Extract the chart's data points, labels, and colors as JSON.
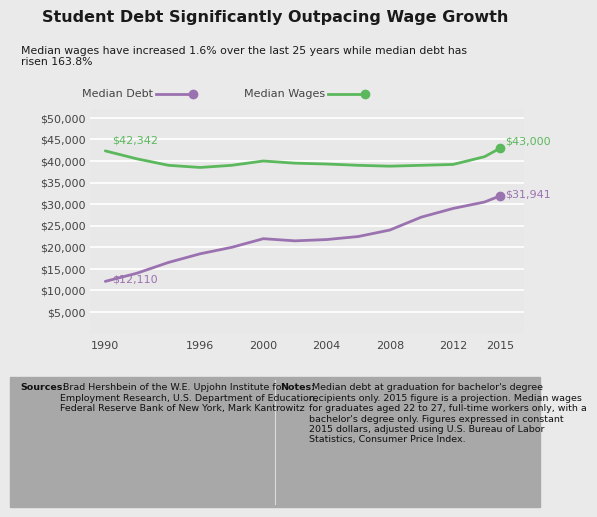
{
  "title": "Student Debt Significantly Outpacing Wage Growth",
  "subtitle": "Median wages have increased 1.6% over the last 25 years while median debt has\nrisen 163.8%",
  "bg_color": "#eaeaea",
  "plot_bg_color": "#e8e8e8",
  "footer_bg_color": "#a8a8a8",
  "debt_color": "#9b72b0",
  "wages_color": "#5cb85c",
  "debt_label": "Median Debt",
  "wages_label": "Median Wages",
  "debt_years": [
    1990,
    1992,
    1994,
    1996,
    1998,
    2000,
    2002,
    2004,
    2006,
    2008,
    2010,
    2012,
    2014,
    2015
  ],
  "debt_values": [
    12110,
    14000,
    16500,
    18500,
    20000,
    22000,
    21500,
    21800,
    22500,
    24000,
    27000,
    29000,
    30500,
    31941
  ],
  "wages_years": [
    1990,
    1992,
    1994,
    1996,
    1998,
    2000,
    2002,
    2004,
    2006,
    2008,
    2010,
    2012,
    2014,
    2015
  ],
  "wages_values": [
    42342,
    40500,
    39000,
    38500,
    39000,
    40000,
    39500,
    39300,
    39000,
    38800,
    39000,
    39200,
    41000,
    43000
  ],
  "xlim": [
    1989,
    2016.5
  ],
  "ylim": [
    0,
    52000
  ],
  "yticks": [
    5000,
    10000,
    15000,
    20000,
    25000,
    30000,
    35000,
    40000,
    45000,
    50000
  ],
  "xticks": [
    1990,
    1996,
    2000,
    2004,
    2008,
    2012,
    2015
  ],
  "sources_bold": "Sources:",
  "sources_text": " Brad Hershbein of the W.E. Upjohn Institute for\nEmployment Research, U.S. Department of Education,\nFederal Reserve Bank of New York, Mark Kantrowitz",
  "notes_bold": "Notes:",
  "notes_text": " Median debt at graduation for bachelor's degree\nrecipients only. 2015 figure is a projection. Median wages\nfor graduates aged 22 to 27, full-time workers only, with a\nbachelor's degree only. Figures expressed in constant\n2015 dollars, adjusted using U.S. Bureau of Labor\nStatistics, Consumer Price Index."
}
